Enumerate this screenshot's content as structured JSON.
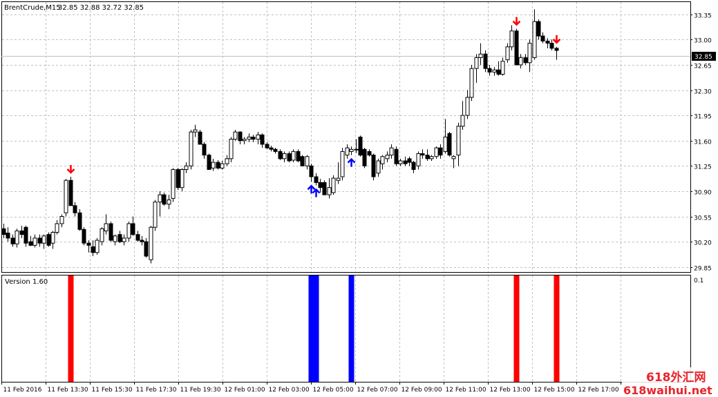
{
  "header": {
    "symbol": "BrentCrude,M15",
    "ohlc": "32.85 32.88 32.72 32.85"
  },
  "indicator": {
    "label": "Version 1.60",
    "scale_max": "0.1"
  },
  "current_price": "32.85",
  "watermark": {
    "cn": "618外汇网",
    "url": "618waihui.net"
  },
  "colors": {
    "bull_fill": "#ffffff",
    "bear_fill": "#000000",
    "sell": "#ff0000",
    "buy": "#0000ff",
    "grid": "#c0c0c0"
  },
  "chart_data": {
    "type": "candlestick",
    "timeframe": "M15",
    "ylim": [
      29.78,
      33.52
    ],
    "y_ticks": [
      "33.35",
      "33.00",
      "32.65",
      "32.30",
      "31.95",
      "31.60",
      "31.25",
      "30.90",
      "30.55",
      "30.20",
      "29.85"
    ],
    "x_ticks": [
      "11 Feb 2016",
      "11 Feb 13:30",
      "11 Feb 15:30",
      "11 Feb 17:30",
      "11 Feb 19:30",
      "12 Feb 01:00",
      "12 Feb 03:00",
      "12 Feb 05:00",
      "12 Feb 07:00",
      "12 Feb 09:00",
      "12 Feb 11:00",
      "12 Feb 13:00",
      "12 Feb 15:00",
      "12 Feb 17:00",
      "12 F"
    ],
    "candles": [
      {
        "o": 30.38,
        "h": 30.45,
        "l": 30.25,
        "c": 30.3
      },
      {
        "o": 30.32,
        "h": 30.4,
        "l": 30.2,
        "c": 30.25
      },
      {
        "o": 30.25,
        "h": 30.3,
        "l": 30.13,
        "c": 30.17
      },
      {
        "o": 30.17,
        "h": 30.38,
        "l": 30.12,
        "c": 30.35
      },
      {
        "o": 30.35,
        "h": 30.42,
        "l": 30.25,
        "c": 30.3
      },
      {
        "o": 30.4,
        "h": 30.42,
        "l": 30.13,
        "c": 30.18
      },
      {
        "o": 30.2,
        "h": 30.28,
        "l": 30.14,
        "c": 30.15
      },
      {
        "o": 30.15,
        "h": 30.3,
        "l": 30.12,
        "c": 30.25
      },
      {
        "o": 30.25,
        "h": 30.3,
        "l": 30.13,
        "c": 30.18
      },
      {
        "o": 30.18,
        "h": 30.3,
        "l": 30.1,
        "c": 30.28
      },
      {
        "o": 30.3,
        "h": 30.33,
        "l": 30.13,
        "c": 30.15
      },
      {
        "o": 30.18,
        "h": 30.35,
        "l": 30.1,
        "c": 30.33
      },
      {
        "o": 30.33,
        "h": 30.5,
        "l": 30.3,
        "c": 30.45
      },
      {
        "o": 30.45,
        "h": 30.58,
        "l": 30.4,
        "c": 30.55
      },
      {
        "o": 30.6,
        "h": 31.07,
        "l": 30.55,
        "c": 31.05
      },
      {
        "o": 31.05,
        "h": 31.1,
        "l": 30.7,
        "c": 30.7
      },
      {
        "o": 30.7,
        "h": 30.75,
        "l": 30.55,
        "c": 30.6
      },
      {
        "o": 30.6,
        "h": 30.65,
        "l": 30.35,
        "c": 30.37
      },
      {
        "o": 30.37,
        "h": 30.4,
        "l": 30.15,
        "c": 30.18
      },
      {
        "o": 30.18,
        "h": 30.22,
        "l": 30.05,
        "c": 30.15
      },
      {
        "o": 30.13,
        "h": 30.22,
        "l": 30.0,
        "c": 30.05
      },
      {
        "o": 30.05,
        "h": 30.25,
        "l": 30.02,
        "c": 30.22
      },
      {
        "o": 30.2,
        "h": 30.4,
        "l": 30.15,
        "c": 30.38
      },
      {
        "o": 30.35,
        "h": 30.58,
        "l": 30.3,
        "c": 30.45
      },
      {
        "o": 30.45,
        "h": 30.48,
        "l": 30.2,
        "c": 30.22
      },
      {
        "o": 30.2,
        "h": 30.3,
        "l": 30.15,
        "c": 30.28
      },
      {
        "o": 30.3,
        "h": 30.35,
        "l": 30.18,
        "c": 30.2
      },
      {
        "o": 30.2,
        "h": 30.3,
        "l": 30.15,
        "c": 30.25
      },
      {
        "o": 30.25,
        "h": 30.48,
        "l": 30.2,
        "c": 30.45
      },
      {
        "o": 30.45,
        "h": 30.55,
        "l": 30.28,
        "c": 30.3
      },
      {
        "o": 30.3,
        "h": 30.35,
        "l": 30.2,
        "c": 30.22
      },
      {
        "o": 30.22,
        "h": 30.28,
        "l": 30.15,
        "c": 30.2
      },
      {
        "o": 30.2,
        "h": 30.25,
        "l": 29.98,
        "c": 30.0
      },
      {
        "o": 29.95,
        "h": 30.42,
        "l": 29.9,
        "c": 30.4
      },
      {
        "o": 30.4,
        "h": 30.78,
        "l": 30.35,
        "c": 30.75
      },
      {
        "o": 30.75,
        "h": 30.9,
        "l": 30.55,
        "c": 30.85
      },
      {
        "o": 30.85,
        "h": 30.88,
        "l": 30.7,
        "c": 30.72
      },
      {
        "o": 30.72,
        "h": 30.85,
        "l": 30.65,
        "c": 30.78
      },
      {
        "o": 30.8,
        "h": 31.22,
        "l": 30.75,
        "c": 31.2
      },
      {
        "o": 31.2,
        "h": 31.22,
        "l": 30.92,
        "c": 30.95
      },
      {
        "o": 30.95,
        "h": 31.22,
        "l": 30.9,
        "c": 31.2
      },
      {
        "o": 31.2,
        "h": 31.3,
        "l": 31.15,
        "c": 31.25
      },
      {
        "o": 31.25,
        "h": 31.75,
        "l": 31.2,
        "c": 31.72
      },
      {
        "o": 31.72,
        "h": 31.82,
        "l": 31.65,
        "c": 31.75
      },
      {
        "o": 31.72,
        "h": 31.75,
        "l": 31.55,
        "c": 31.55
      },
      {
        "o": 31.55,
        "h": 31.58,
        "l": 31.35,
        "c": 31.4
      },
      {
        "o": 31.4,
        "h": 31.42,
        "l": 31.2,
        "c": 31.2
      },
      {
        "o": 31.22,
        "h": 31.35,
        "l": 31.18,
        "c": 31.3
      },
      {
        "o": 31.3,
        "h": 31.33,
        "l": 31.2,
        "c": 31.22
      },
      {
        "o": 31.22,
        "h": 31.32,
        "l": 31.2,
        "c": 31.28
      },
      {
        "o": 31.28,
        "h": 31.4,
        "l": 31.25,
        "c": 31.35
      },
      {
        "o": 31.35,
        "h": 31.65,
        "l": 31.3,
        "c": 31.62
      },
      {
        "o": 31.62,
        "h": 31.75,
        "l": 31.6,
        "c": 31.72
      },
      {
        "o": 31.72,
        "h": 31.73,
        "l": 31.55,
        "c": 31.6
      },
      {
        "o": 31.6,
        "h": 31.65,
        "l": 31.55,
        "c": 31.62
      },
      {
        "o": 31.62,
        "h": 31.7,
        "l": 31.58,
        "c": 31.65
      },
      {
        "o": 31.65,
        "h": 31.68,
        "l": 31.58,
        "c": 31.62
      },
      {
        "o": 31.62,
        "h": 31.72,
        "l": 31.55,
        "c": 31.68
      },
      {
        "o": 31.68,
        "h": 31.7,
        "l": 31.5,
        "c": 31.55
      },
      {
        "o": 31.55,
        "h": 31.58,
        "l": 31.48,
        "c": 31.5
      },
      {
        "o": 31.5,
        "h": 31.53,
        "l": 31.45,
        "c": 31.48
      },
      {
        "o": 31.48,
        "h": 31.5,
        "l": 31.42,
        "c": 31.45
      },
      {
        "o": 31.45,
        "h": 31.48,
        "l": 31.33,
        "c": 31.35
      },
      {
        "o": 31.35,
        "h": 31.45,
        "l": 31.3,
        "c": 31.42
      },
      {
        "o": 31.42,
        "h": 31.45,
        "l": 31.3,
        "c": 31.32
      },
      {
        "o": 31.33,
        "h": 31.48,
        "l": 31.3,
        "c": 31.45
      },
      {
        "o": 31.45,
        "h": 31.48,
        "l": 31.3,
        "c": 31.32
      },
      {
        "o": 31.38,
        "h": 31.4,
        "l": 31.25,
        "c": 31.25
      },
      {
        "o": 31.25,
        "h": 31.4,
        "l": 31.2,
        "c": 31.38
      },
      {
        "o": 31.25,
        "h": 31.28,
        "l": 31.03,
        "c": 31.1
      },
      {
        "o": 31.1,
        "h": 31.15,
        "l": 30.98,
        "c": 31.02
      },
      {
        "o": 31.02,
        "h": 31.07,
        "l": 30.88,
        "c": 30.95
      },
      {
        "o": 31.02,
        "h": 31.05,
        "l": 30.85,
        "c": 30.85
      },
      {
        "o": 30.85,
        "h": 31.08,
        "l": 30.8,
        "c": 30.95
      },
      {
        "o": 30.88,
        "h": 31.12,
        "l": 30.85,
        "c": 31.08
      },
      {
        "o": 31.05,
        "h": 31.3,
        "l": 31.0,
        "c": 31.08
      },
      {
        "o": 31.1,
        "h": 31.5,
        "l": 31.05,
        "c": 31.45
      },
      {
        "o": 31.4,
        "h": 31.55,
        "l": 31.35,
        "c": 31.5
      },
      {
        "o": 31.45,
        "h": 31.52,
        "l": 31.4,
        "c": 31.48
      },
      {
        "o": 31.48,
        "h": 31.62,
        "l": 31.43,
        "c": 31.48
      },
      {
        "o": 31.65,
        "h": 31.67,
        "l": 31.38,
        "c": 31.4
      },
      {
        "o": 31.48,
        "h": 31.5,
        "l": 31.22,
        "c": 31.25
      },
      {
        "o": 31.45,
        "h": 31.48,
        "l": 31.38,
        "c": 31.4
      },
      {
        "o": 31.4,
        "h": 31.42,
        "l": 31.05,
        "c": 31.1
      },
      {
        "o": 31.15,
        "h": 31.35,
        "l": 31.1,
        "c": 31.32
      },
      {
        "o": 31.28,
        "h": 31.4,
        "l": 31.2,
        "c": 31.38
      },
      {
        "o": 31.35,
        "h": 31.45,
        "l": 31.3,
        "c": 31.4
      },
      {
        "o": 31.4,
        "h": 31.55,
        "l": 31.35,
        "c": 31.5
      },
      {
        "o": 31.48,
        "h": 31.52,
        "l": 31.25,
        "c": 31.28
      },
      {
        "o": 31.28,
        "h": 31.35,
        "l": 31.25,
        "c": 31.32
      },
      {
        "o": 31.32,
        "h": 31.38,
        "l": 31.25,
        "c": 31.28
      },
      {
        "o": 31.35,
        "h": 31.38,
        "l": 31.25,
        "c": 31.3
      },
      {
        "o": 31.3,
        "h": 31.32,
        "l": 31.15,
        "c": 31.2
      },
      {
        "o": 31.25,
        "h": 31.45,
        "l": 31.2,
        "c": 31.42
      },
      {
        "o": 31.42,
        "h": 31.48,
        "l": 31.35,
        "c": 31.4
      },
      {
        "o": 31.4,
        "h": 31.48,
        "l": 31.32,
        "c": 31.35
      },
      {
        "o": 31.35,
        "h": 31.4,
        "l": 31.32,
        "c": 31.38
      },
      {
        "o": 31.38,
        "h": 31.52,
        "l": 31.35,
        "c": 31.5
      },
      {
        "o": 31.5,
        "h": 31.55,
        "l": 31.35,
        "c": 31.4
      },
      {
        "o": 31.45,
        "h": 31.9,
        "l": 31.42,
        "c": 31.65
      },
      {
        "o": 31.7,
        "h": 31.72,
        "l": 31.38,
        "c": 31.4
      },
      {
        "o": 31.35,
        "h": 31.4,
        "l": 31.22,
        "c": 31.38
      },
      {
        "o": 31.4,
        "h": 31.85,
        "l": 31.25,
        "c": 31.8
      },
      {
        "o": 31.8,
        "h": 32.15,
        "l": 31.75,
        "c": 31.95
      },
      {
        "o": 31.95,
        "h": 32.3,
        "l": 31.9,
        "c": 32.2
      },
      {
        "o": 32.2,
        "h": 32.65,
        "l": 32.15,
        "c": 32.6
      },
      {
        "o": 32.6,
        "h": 32.8,
        "l": 32.4,
        "c": 32.75
      },
      {
        "o": 32.75,
        "h": 32.95,
        "l": 32.65,
        "c": 32.8
      },
      {
        "o": 32.8,
        "h": 32.85,
        "l": 32.55,
        "c": 32.6
      },
      {
        "o": 32.6,
        "h": 32.65,
        "l": 32.5,
        "c": 32.55
      },
      {
        "o": 32.55,
        "h": 32.62,
        "l": 32.5,
        "c": 32.58
      },
      {
        "o": 32.58,
        "h": 32.7,
        "l": 32.5,
        "c": 32.52
      },
      {
        "o": 32.52,
        "h": 32.75,
        "l": 32.5,
        "c": 32.7
      },
      {
        "o": 32.72,
        "h": 32.95,
        "l": 32.68,
        "c": 32.9
      },
      {
        "o": 32.9,
        "h": 33.2,
        "l": 32.85,
        "c": 33.12
      },
      {
        "o": 33.12,
        "h": 33.15,
        "l": 32.65,
        "c": 32.65
      },
      {
        "o": 32.65,
        "h": 32.8,
        "l": 32.6,
        "c": 32.75
      },
      {
        "o": 32.75,
        "h": 32.8,
        "l": 32.65,
        "c": 32.68
      },
      {
        "o": 32.68,
        "h": 33.0,
        "l": 32.55,
        "c": 32.95
      },
      {
        "o": 32.75,
        "h": 33.42,
        "l": 32.72,
        "c": 33.25
      },
      {
        "o": 33.25,
        "h": 33.28,
        "l": 33.0,
        "c": 33.05
      },
      {
        "o": 33.05,
        "h": 33.1,
        "l": 32.95,
        "c": 32.98
      },
      {
        "o": 32.98,
        "h": 33.02,
        "l": 32.88,
        "c": 32.95
      },
      {
        "o": 32.95,
        "h": 33.0,
        "l": 32.85,
        "c": 32.88
      },
      {
        "o": 32.88,
        "h": 32.9,
        "l": 32.72,
        "c": 32.85
      }
    ],
    "signals": [
      {
        "index": 15,
        "type": "sell"
      },
      {
        "index": 69,
        "type": "buy"
      },
      {
        "index": 70,
        "type": "buy"
      },
      {
        "index": 78,
        "type": "buy"
      },
      {
        "index": 115,
        "type": "sell"
      },
      {
        "index": 124,
        "type": "sell"
      }
    ]
  }
}
